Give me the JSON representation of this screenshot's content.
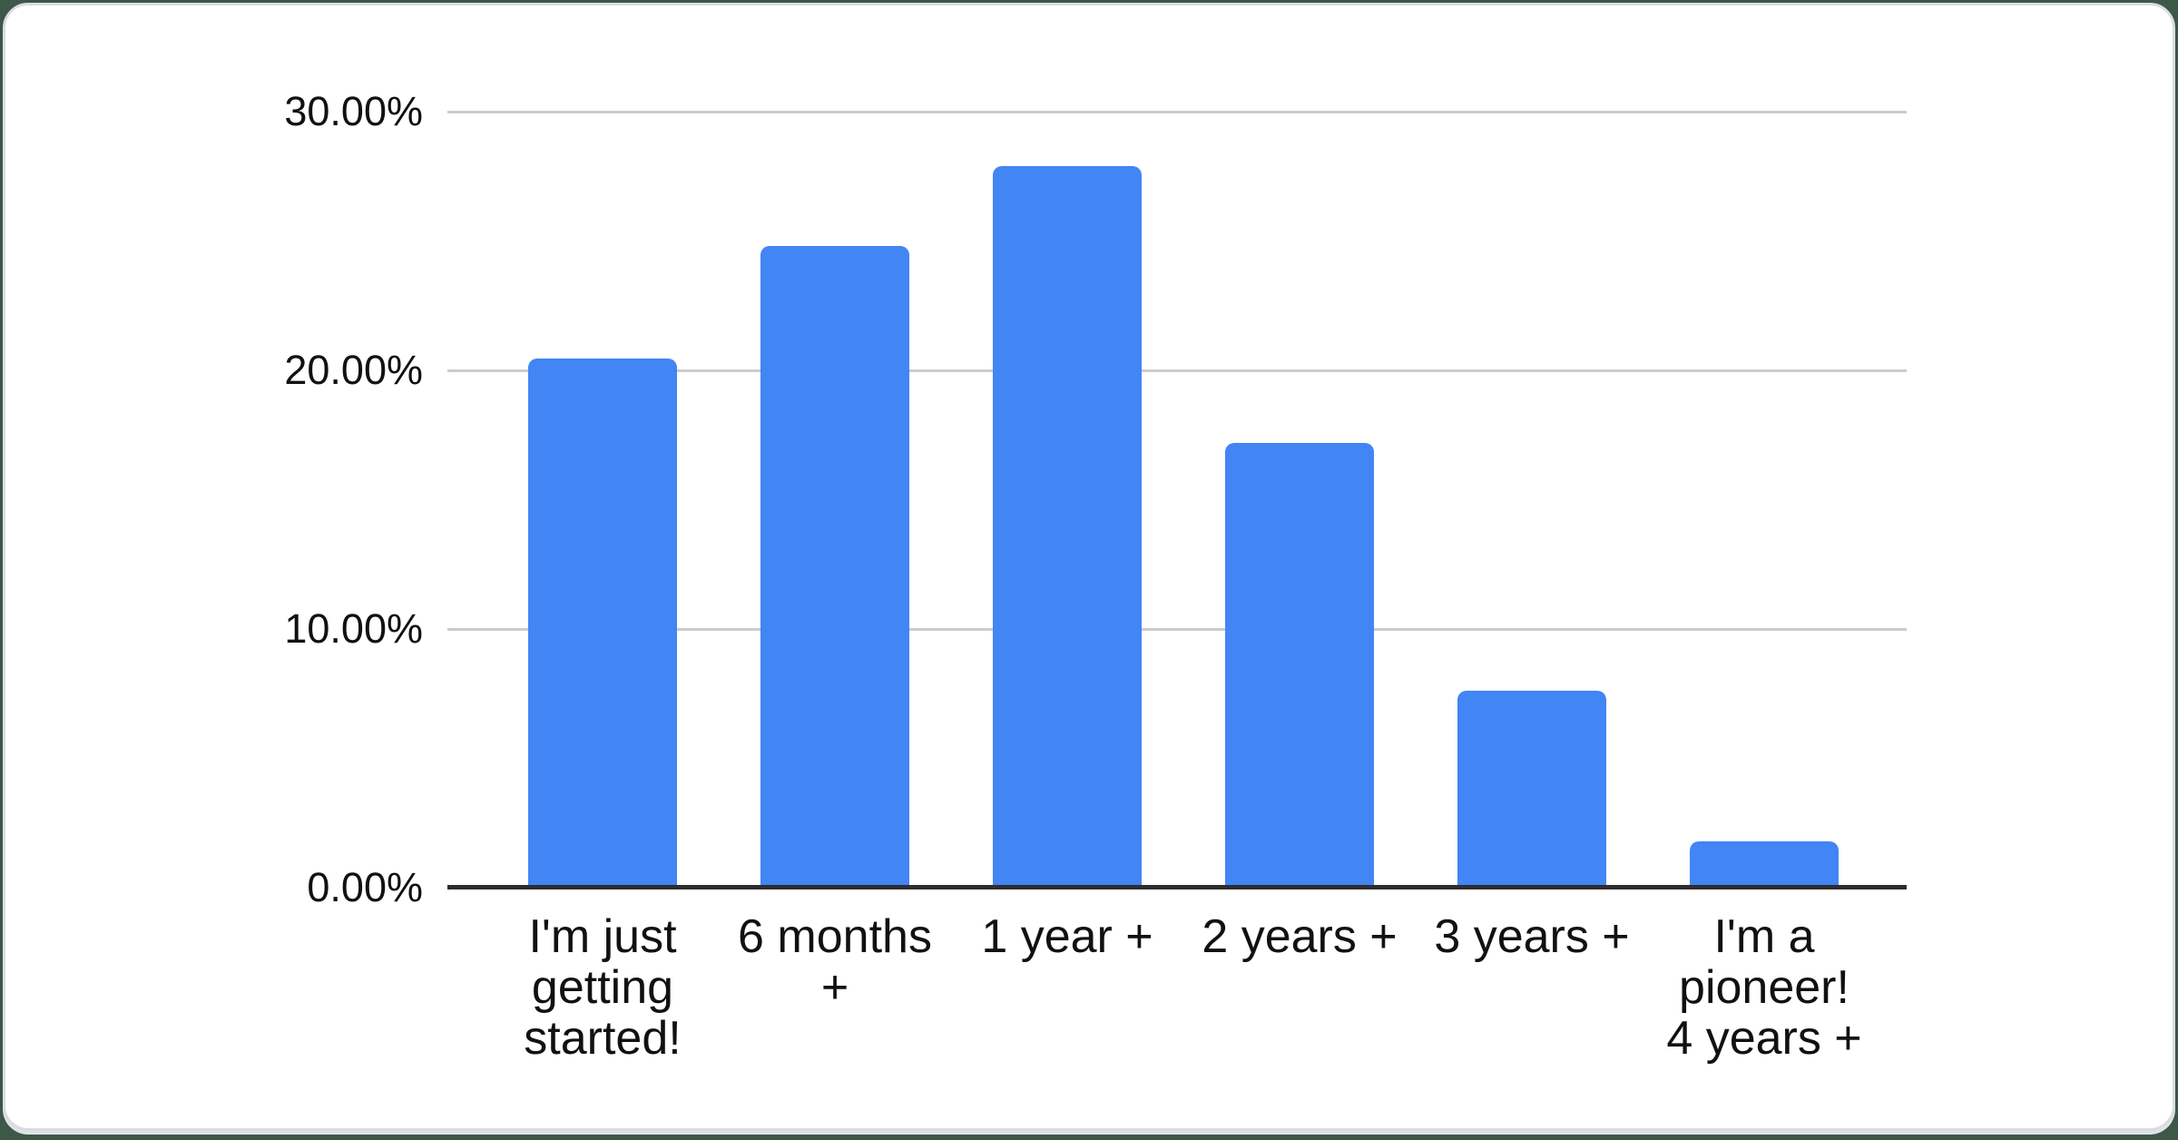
{
  "page": {
    "background_color": "#3d5748",
    "card_background": "#ffffff",
    "card_border_color": "#d9dde1"
  },
  "chart_data": {
    "type": "bar",
    "title": "",
    "categories": [
      "I'm just getting started!",
      "6 months +",
      "1 year +",
      "2 years +",
      "3 years +",
      "I'm a pioneer! 4 years +"
    ],
    "categories_wrapped": [
      [
        "I'm just",
        "getting",
        "started!"
      ],
      [
        "6 months",
        "+"
      ],
      [
        "1 year +"
      ],
      [
        "2 years +"
      ],
      [
        "3 years +"
      ],
      [
        "I'm a",
        "pioneer!",
        "4 years +"
      ]
    ],
    "values": [
      20.45,
      24.8,
      27.9,
      17.2,
      7.6,
      1.8
    ],
    "unit": "percent",
    "xlabel": "",
    "ylabel": "",
    "y_ticks": [
      "30.00%",
      "20.00%",
      "10.00%",
      "0.00%"
    ],
    "y_tick_values": [
      30,
      20,
      10,
      0
    ],
    "ylim": [
      0,
      30
    ],
    "grid": true,
    "legend": "none",
    "bar_color": "#4285f4",
    "gridline_color": "#cccccc",
    "axis_line_color": "#2d2d2d",
    "label_color": "#111111"
  }
}
